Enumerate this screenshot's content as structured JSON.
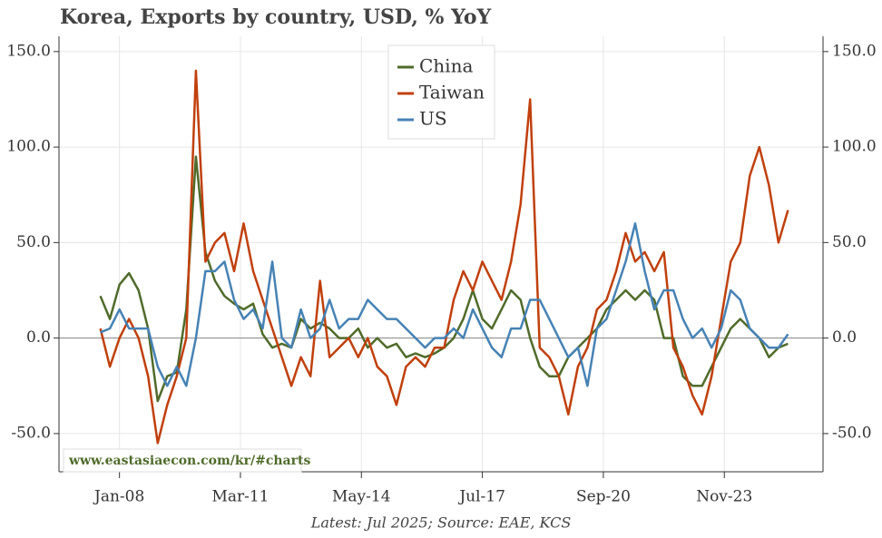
{
  "chart_data": {
    "type": "line",
    "title": "Korea, Exports by country, USD, % YoY",
    "footer": "Latest: Jul 2025; Source: EAE, KCS",
    "watermark": "www.eastasiaecon.com/kr/#charts",
    "x": [
      "Jul-07",
      "Oct-07",
      "Jan-08",
      "Apr-08",
      "Jul-08",
      "Oct-08",
      "Jan-09",
      "Apr-09",
      "Jul-09",
      "Oct-09",
      "Jan-10",
      "Apr-10",
      "Jul-10",
      "Oct-10",
      "Jan-11",
      "Apr-11",
      "Jul-11",
      "Oct-11",
      "Jan-12",
      "Apr-12",
      "Jul-12",
      "Oct-12",
      "Jan-13",
      "Apr-13",
      "Jul-13",
      "Oct-13",
      "Jan-14",
      "Apr-14",
      "Jul-14",
      "Oct-14",
      "Jan-15",
      "Apr-15",
      "Jul-15",
      "Oct-15",
      "Jan-16",
      "Apr-16",
      "Jul-16",
      "Oct-16",
      "Jan-17",
      "Apr-17",
      "Jul-17",
      "Oct-17",
      "Jan-18",
      "Apr-18",
      "Jul-18",
      "Oct-18",
      "Jan-19",
      "Apr-19",
      "Jul-19",
      "Oct-19",
      "Jan-20",
      "Apr-20",
      "Jul-20",
      "Oct-20",
      "Jan-21",
      "Apr-21",
      "Jul-21",
      "Oct-21",
      "Jan-22",
      "Apr-22",
      "Jul-22",
      "Oct-22",
      "Jan-23",
      "Apr-23",
      "Jul-23",
      "Oct-23",
      "Jan-24",
      "Apr-24",
      "Jul-24",
      "Oct-24",
      "Jan-25",
      "Apr-25",
      "Jul-25"
    ],
    "series": [
      {
        "name": "China",
        "color": "#4f6b2a",
        "values": [
          22,
          10,
          28,
          34,
          25,
          5,
          -33,
          -20,
          -18,
          15,
          95,
          45,
          30,
          22,
          18,
          15,
          18,
          2,
          -5,
          -3,
          -5,
          10,
          5,
          8,
          5,
          0,
          0,
          5,
          -5,
          0,
          -5,
          -3,
          -10,
          -8,
          -10,
          -8,
          -5,
          0,
          10,
          25,
          10,
          5,
          15,
          25,
          20,
          0,
          -15,
          -20,
          -20,
          -10,
          -5,
          0,
          5,
          15,
          20,
          25,
          20,
          25,
          20,
          0,
          0,
          -20,
          -25,
          -25,
          -15,
          -5,
          5,
          10,
          5,
          0,
          -10,
          -5,
          -3
        ]
      },
      {
        "name": "Taiwan",
        "color": "#c0400c",
        "values": [
          5,
          -15,
          0,
          10,
          0,
          -20,
          -55,
          -35,
          -20,
          0,
          140,
          40,
          50,
          55,
          35,
          60,
          35,
          20,
          5,
          -10,
          -25,
          -10,
          -20,
          30,
          -10,
          -5,
          0,
          -10,
          0,
          -15,
          -20,
          -35,
          -15,
          -10,
          -15,
          -5,
          -5,
          20,
          35,
          25,
          40,
          30,
          20,
          40,
          70,
          125,
          -5,
          -10,
          -20,
          -40,
          -15,
          -5,
          15,
          20,
          35,
          55,
          40,
          45,
          35,
          45,
          -5,
          -15,
          -30,
          -40,
          -20,
          10,
          40,
          50,
          85,
          100,
          80,
          50,
          67
        ]
      },
      {
        "name": "US",
        "color": "#4682b4",
        "values": [
          3,
          5,
          15,
          5,
          5,
          5,
          -15,
          -25,
          -15,
          -25,
          0,
          35,
          35,
          40,
          20,
          10,
          15,
          5,
          40,
          0,
          -5,
          15,
          0,
          5,
          20,
          5,
          10,
          10,
          20,
          15,
          10,
          10,
          5,
          0,
          -5,
          0,
          0,
          5,
          0,
          15,
          5,
          -5,
          -10,
          5,
          5,
          20,
          20,
          10,
          0,
          -10,
          -5,
          -25,
          5,
          10,
          25,
          40,
          60,
          35,
          15,
          25,
          25,
          10,
          0,
          5,
          -5,
          5,
          25,
          20,
          5,
          0,
          -5,
          -5,
          2
        ]
      }
    ],
    "xlim": [
      "Jun-06",
      "Jun-26"
    ],
    "xticks": [
      "Jan-08",
      "Mar-11",
      "May-14",
      "Jul-17",
      "Sep-20",
      "Nov-23"
    ],
    "ylim": [
      -70,
      158
    ],
    "yticks": [
      {
        "value": -50,
        "label": "-50.0"
      },
      {
        "value": 0,
        "label": "0.0"
      },
      {
        "value": 50,
        "label": "50.0"
      },
      {
        "value": 100,
        "label": "100.0"
      },
      {
        "value": 150,
        "label": "150.0"
      }
    ],
    "grid": true
  }
}
